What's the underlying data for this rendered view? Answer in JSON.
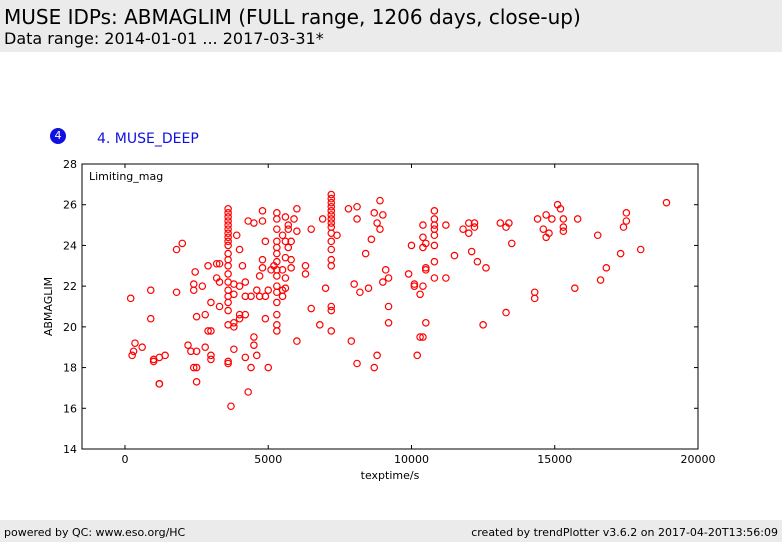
{
  "header": {
    "title": "MUSE IDPs: ABMAGLIM (FULL range, 1206 days, close-up)",
    "subtitle": "Data range: 2014-01-01 ... 2017-03-31*"
  },
  "panel": {
    "number": "4",
    "label": "4. MUSE_DEEP"
  },
  "footer": {
    "left": "powered by QC: www.eso.org/HC",
    "right": "created by trendPlotter v3.6.2 on 2017-04-20T13:56:09"
  },
  "chart_data": {
    "type": "scatter",
    "title": "",
    "xlabel": "texptime/s",
    "ylabel": "ABMAGLIM",
    "legend_text": "Limiting_mag",
    "legend_position": "top-left",
    "xlim": [
      -1500,
      20000
    ],
    "ylim": [
      14,
      28
    ],
    "xticks": [
      0,
      5000,
      10000,
      15000,
      20000
    ],
    "yticks": [
      14,
      16,
      18,
      20,
      22,
      24,
      26,
      28
    ],
    "marker": "hollow-circle",
    "marker_color": "#ff0000",
    "grid": false,
    "points": [
      [
        200,
        21.4
      ],
      [
        250,
        18.6
      ],
      [
        300,
        18.8
      ],
      [
        350,
        19.2
      ],
      [
        600,
        19.0
      ],
      [
        900,
        21.8
      ],
      [
        900,
        20.4
      ],
      [
        1000,
        18.3
      ],
      [
        1000,
        18.4
      ],
      [
        1200,
        18.5
      ],
      [
        1200,
        17.2
      ],
      [
        1200,
        17.2
      ],
      [
        1400,
        18.6
      ],
      [
        1800,
        21.7
      ],
      [
        1800,
        23.8
      ],
      [
        2000,
        24.1
      ],
      [
        2200,
        19.1
      ],
      [
        2300,
        18.8
      ],
      [
        2400,
        18.0
      ],
      [
        2400,
        22.1
      ],
      [
        2400,
        21.8
      ],
      [
        2450,
        22.7
      ],
      [
        2500,
        20.5
      ],
      [
        2500,
        18.8
      ],
      [
        2500,
        17.3
      ],
      [
        2500,
        18.0
      ],
      [
        2700,
        22.0
      ],
      [
        2800,
        20.6
      ],
      [
        2800,
        19.0
      ],
      [
        2900,
        23.0
      ],
      [
        2900,
        19.8
      ],
      [
        3000,
        21.2
      ],
      [
        3000,
        19.8
      ],
      [
        3000,
        18.6
      ],
      [
        3000,
        18.4
      ],
      [
        3200,
        23.1
      ],
      [
        3200,
        22.4
      ],
      [
        3300,
        22.2
      ],
      [
        3300,
        21.0
      ],
      [
        3300,
        23.1
      ],
      [
        3600,
        25.8
      ],
      [
        3600,
        25.6
      ],
      [
        3600,
        25.4
      ],
      [
        3600,
        25.2
      ],
      [
        3600,
        25.0
      ],
      [
        3600,
        24.8
      ],
      [
        3600,
        24.6
      ],
      [
        3600,
        24.4
      ],
      [
        3600,
        24.2
      ],
      [
        3600,
        24.0
      ],
      [
        3600,
        23.6
      ],
      [
        3600,
        23.3
      ],
      [
        3600,
        23.0
      ],
      [
        3600,
        22.6
      ],
      [
        3600,
        22.2
      ],
      [
        3600,
        21.8
      ],
      [
        3600,
        21.5
      ],
      [
        3600,
        21.2
      ],
      [
        3600,
        20.8
      ],
      [
        3600,
        20.1
      ],
      [
        3600,
        18.3
      ],
      [
        3600,
        18.2
      ],
      [
        3700,
        16.1
      ],
      [
        3800,
        18.9
      ],
      [
        3800,
        20.2
      ],
      [
        3800,
        20.0
      ],
      [
        3800,
        21.6
      ],
      [
        3800,
        22.1
      ],
      [
        3900,
        24.5
      ],
      [
        4000,
        23.8
      ],
      [
        4000,
        22.0
      ],
      [
        4000,
        20.6
      ],
      [
        4000,
        20.4
      ],
      [
        4100,
        23.0
      ],
      [
        4200,
        22.2
      ],
      [
        4200,
        21.5
      ],
      [
        4200,
        20.6
      ],
      [
        4200,
        18.5
      ],
      [
        4300,
        16.8
      ],
      [
        4300,
        25.2
      ],
      [
        4400,
        21.5
      ],
      [
        4400,
        18.0
      ],
      [
        4500,
        25.1
      ],
      [
        4500,
        19.5
      ],
      [
        4500,
        19.1
      ],
      [
        4600,
        21.8
      ],
      [
        4600,
        18.6
      ],
      [
        4700,
        22.5
      ],
      [
        4700,
        21.5
      ],
      [
        4800,
        23.3
      ],
      [
        4800,
        22.9
      ],
      [
        4800,
        25.7
      ],
      [
        4800,
        25.2
      ],
      [
        4900,
        24.2
      ],
      [
        4900,
        20.4
      ],
      [
        4900,
        21.5
      ],
      [
        5000,
        21.8
      ],
      [
        5000,
        18.0
      ],
      [
        5100,
        22.8
      ],
      [
        5200,
        23.0
      ],
      [
        5300,
        25.3
      ],
      [
        5300,
        25.6
      ],
      [
        5300,
        24.8
      ],
      [
        5300,
        24.2
      ],
      [
        5300,
        23.9
      ],
      [
        5300,
        23.6
      ],
      [
        5300,
        23.2
      ],
      [
        5300,
        22.8
      ],
      [
        5300,
        22.5
      ],
      [
        5300,
        22.0
      ],
      [
        5300,
        21.7
      ],
      [
        5300,
        21.2
      ],
      [
        5300,
        20.6
      ],
      [
        5300,
        20.1
      ],
      [
        5300,
        19.8
      ],
      [
        5500,
        24.5
      ],
      [
        5500,
        22.8
      ],
      [
        5500,
        21.8
      ],
      [
        5500,
        21.5
      ],
      [
        5600,
        25.4
      ],
      [
        5600,
        24.2
      ],
      [
        5600,
        23.4
      ],
      [
        5600,
        22.4
      ],
      [
        5600,
        21.9
      ],
      [
        5700,
        25.0
      ],
      [
        5700,
        24.8
      ],
      [
        5700,
        23.9
      ],
      [
        5800,
        24.2
      ],
      [
        5800,
        23.3
      ],
      [
        5800,
        22.9
      ],
      [
        5900,
        25.3
      ],
      [
        6000,
        25.8
      ],
      [
        6000,
        24.7
      ],
      [
        6000,
        19.3
      ],
      [
        6300,
        23.0
      ],
      [
        6300,
        22.6
      ],
      [
        6500,
        24.8
      ],
      [
        6500,
        20.9
      ],
      [
        6800,
        20.1
      ],
      [
        6900,
        25.3
      ],
      [
        7000,
        21.9
      ],
      [
        7200,
        26.5
      ],
      [
        7200,
        26.3
      ],
      [
        7200,
        26.1
      ],
      [
        7200,
        25.9
      ],
      [
        7200,
        25.7
      ],
      [
        7200,
        25.5
      ],
      [
        7200,
        25.3
      ],
      [
        7200,
        25.1
      ],
      [
        7200,
        24.9
      ],
      [
        7200,
        24.6
      ],
      [
        7200,
        24.2
      ],
      [
        7200,
        23.8
      ],
      [
        7200,
        23.3
      ],
      [
        7200,
        23.0
      ],
      [
        7200,
        21.0
      ],
      [
        7200,
        20.8
      ],
      [
        7200,
        19.8
      ],
      [
        7400,
        24.5
      ],
      [
        7800,
        25.8
      ],
      [
        7900,
        19.3
      ],
      [
        8000,
        22.1
      ],
      [
        8100,
        25.9
      ],
      [
        8100,
        25.3
      ],
      [
        8100,
        18.2
      ],
      [
        8200,
        21.7
      ],
      [
        8400,
        23.6
      ],
      [
        8500,
        21.9
      ],
      [
        8600,
        24.3
      ],
      [
        8700,
        25.6
      ],
      [
        8700,
        18.0
      ],
      [
        8800,
        25.1
      ],
      [
        8800,
        18.6
      ],
      [
        8900,
        24.8
      ],
      [
        8900,
        26.2
      ],
      [
        9000,
        25.5
      ],
      [
        9000,
        22.2
      ],
      [
        9100,
        22.8
      ],
      [
        9200,
        22.4
      ],
      [
        9200,
        21.0
      ],
      [
        9200,
        20.2
      ],
      [
        9900,
        22.6
      ],
      [
        10000,
        24.0
      ],
      [
        10100,
        22.0
      ],
      [
        10100,
        22.1
      ],
      [
        10200,
        18.6
      ],
      [
        10300,
        19.5
      ],
      [
        10300,
        21.6
      ],
      [
        10400,
        24.4
      ],
      [
        10400,
        25.0
      ],
      [
        10400,
        23.9
      ],
      [
        10400,
        22.0
      ],
      [
        10400,
        19.5
      ],
      [
        10500,
        24.1
      ],
      [
        10500,
        22.8
      ],
      [
        10500,
        22.9
      ],
      [
        10500,
        20.2
      ],
      [
        10800,
        25.7
      ],
      [
        10800,
        25.3
      ],
      [
        10800,
        25.0
      ],
      [
        10800,
        24.8
      ],
      [
        10800,
        24.5
      ],
      [
        10800,
        24.0
      ],
      [
        10800,
        23.2
      ],
      [
        10800,
        22.4
      ],
      [
        11200,
        25.0
      ],
      [
        11200,
        22.4
      ],
      [
        11500,
        23.5
      ],
      [
        11800,
        24.8
      ],
      [
        12000,
        24.6
      ],
      [
        12000,
        25.1
      ],
      [
        12100,
        23.7
      ],
      [
        12200,
        25.1
      ],
      [
        12200,
        24.9
      ],
      [
        12300,
        23.2
      ],
      [
        12500,
        20.1
      ],
      [
        12600,
        22.9
      ],
      [
        13100,
        25.1
      ],
      [
        13300,
        24.9
      ],
      [
        13300,
        20.7
      ],
      [
        13400,
        25.1
      ],
      [
        13500,
        24.1
      ],
      [
        14300,
        21.4
      ],
      [
        14300,
        21.7
      ],
      [
        14400,
        25.3
      ],
      [
        14600,
        24.8
      ],
      [
        14700,
        25.5
      ],
      [
        14700,
        24.4
      ],
      [
        14800,
        24.6
      ],
      [
        14900,
        25.3
      ],
      [
        15100,
        26.0
      ],
      [
        15200,
        25.8
      ],
      [
        15300,
        25.3
      ],
      [
        15300,
        24.9
      ],
      [
        15300,
        24.7
      ],
      [
        15700,
        21.9
      ],
      [
        15800,
        25.3
      ],
      [
        16500,
        24.5
      ],
      [
        16600,
        22.3
      ],
      [
        16800,
        22.9
      ],
      [
        17300,
        23.6
      ],
      [
        17400,
        24.9
      ],
      [
        17500,
        25.6
      ],
      [
        17500,
        25.2
      ],
      [
        18000,
        23.8
      ],
      [
        18900,
        26.1
      ]
    ]
  }
}
